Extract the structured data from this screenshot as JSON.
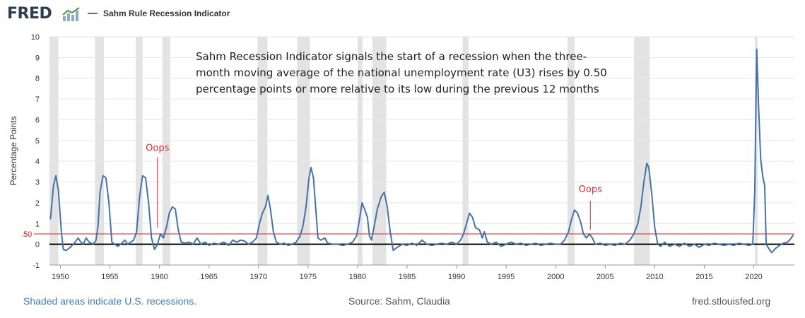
{
  "header": {
    "logo_text": "FRED",
    "logo_icon": "line-chart-icon",
    "series_label": "Sahm Rule Recession Indicator",
    "series_color": "#4572a7"
  },
  "chart_data": {
    "type": "line",
    "ylabel": "Percentage Points",
    "xlim": [
      1948.9,
      2024.1
    ],
    "ylim": [
      -1,
      10
    ],
    "yticks": [
      -1,
      0,
      1,
      2,
      3,
      4,
      5,
      6,
      7,
      8,
      9,
      10
    ],
    "xticks": [
      1950,
      1955,
      1960,
      1965,
      1970,
      1975,
      1980,
      1985,
      1990,
      1995,
      2000,
      2005,
      2010,
      2015,
      2020
    ],
    "grid": true,
    "recessions": [
      [
        1948.9,
        1949.8
      ],
      [
        1953.5,
        1954.4
      ],
      [
        1957.6,
        1958.3
      ],
      [
        1960.3,
        1961.1
      ],
      [
        1969.9,
        1970.9
      ],
      [
        1973.9,
        1975.2
      ],
      [
        1980.0,
        1980.5
      ],
      [
        1981.5,
        1982.9
      ],
      [
        1990.6,
        1991.2
      ],
      [
        2001.2,
        2001.9
      ],
      [
        2007.9,
        2009.5
      ],
      [
        2020.1,
        2020.4
      ]
    ],
    "recession_color": "#e3e3e3",
    "reference_line": {
      "value": 0.5,
      "label": ".50",
      "color": "#cc2222"
    },
    "zero_line_color": "#000000",
    "annotation": {
      "lines": [
        "Sahm Recession Indicator signals the start of a recession when the three-",
        "month moving average of the national unemployment rate (U3) rises by 0.50",
        "percentage points or more relative to its low during the previous 12 months"
      ]
    },
    "callouts": [
      {
        "label": "Oops",
        "x": 1959.8,
        "y_text": 4.5,
        "y_line_top": 4.2,
        "y_line_bottom": 0.8
      },
      {
        "label": "Oops",
        "x": 2003.5,
        "y_text": 2.5,
        "y_line_top": 2.1,
        "y_line_bottom": 0.7
      }
    ],
    "callout_color": "#d9303a",
    "series": [
      {
        "name": "Sahm Rule Recession Indicator",
        "color": "#4572a7",
        "points": [
          [
            1949.0,
            1.2
          ],
          [
            1949.3,
            2.8
          ],
          [
            1949.55,
            3.3
          ],
          [
            1949.8,
            2.6
          ],
          [
            1950.1,
            0.6
          ],
          [
            1950.3,
            -0.25
          ],
          [
            1950.6,
            -0.3
          ],
          [
            1951.0,
            -0.15
          ],
          [
            1951.4,
            0.05
          ],
          [
            1951.8,
            0.3
          ],
          [
            1952.0,
            0.15
          ],
          [
            1952.3,
            0.0
          ],
          [
            1952.6,
            0.3
          ],
          [
            1952.9,
            0.1
          ],
          [
            1953.3,
            0.0
          ],
          [
            1953.6,
            0.2
          ],
          [
            1953.8,
            0.9
          ],
          [
            1954.0,
            2.5
          ],
          [
            1954.3,
            3.3
          ],
          [
            1954.6,
            3.2
          ],
          [
            1954.9,
            2.0
          ],
          [
            1955.2,
            0.1
          ],
          [
            1955.5,
            0.0
          ],
          [
            1955.8,
            -0.1
          ],
          [
            1956.2,
            0.05
          ],
          [
            1956.5,
            0.2
          ],
          [
            1956.8,
            0.0
          ],
          [
            1957.1,
            0.1
          ],
          [
            1957.4,
            0.2
          ],
          [
            1957.7,
            0.6
          ],
          [
            1958.0,
            2.3
          ],
          [
            1958.3,
            3.3
          ],
          [
            1958.6,
            3.2
          ],
          [
            1958.9,
            2.0
          ],
          [
            1959.2,
            0.3
          ],
          [
            1959.5,
            -0.25
          ],
          [
            1959.8,
            0.0
          ],
          [
            1960.1,
            0.5
          ],
          [
            1960.4,
            0.3
          ],
          [
            1960.7,
            0.8
          ],
          [
            1961.0,
            1.5
          ],
          [
            1961.3,
            1.8
          ],
          [
            1961.6,
            1.7
          ],
          [
            1961.9,
            0.7
          ],
          [
            1962.2,
            0.1
          ],
          [
            1962.6,
            0.05
          ],
          [
            1963.0,
            0.1
          ],
          [
            1963.4,
            0.0
          ],
          [
            1963.8,
            0.3
          ],
          [
            1964.2,
            0.0
          ],
          [
            1964.6,
            0.1
          ],
          [
            1965.0,
            -0.05
          ],
          [
            1965.5,
            0.05
          ],
          [
            1966.0,
            0.0
          ],
          [
            1966.5,
            0.1
          ],
          [
            1967.0,
            -0.05
          ],
          [
            1967.4,
            0.2
          ],
          [
            1967.8,
            0.1
          ],
          [
            1968.2,
            0.2
          ],
          [
            1968.6,
            0.15
          ],
          [
            1969.0,
            0.0
          ],
          [
            1969.4,
            0.1
          ],
          [
            1969.8,
            0.3
          ],
          [
            1970.1,
            1.0
          ],
          [
            1970.4,
            1.5
          ],
          [
            1970.7,
            1.8
          ],
          [
            1970.95,
            2.35
          ],
          [
            1971.2,
            1.7
          ],
          [
            1971.5,
            0.6
          ],
          [
            1971.8,
            0.1
          ],
          [
            1972.2,
            0.0
          ],
          [
            1972.6,
            0.05
          ],
          [
            1973.0,
            -0.05
          ],
          [
            1973.4,
            0.0
          ],
          [
            1973.8,
            0.1
          ],
          [
            1974.2,
            0.4
          ],
          [
            1974.5,
            0.9
          ],
          [
            1974.8,
            1.8
          ],
          [
            1975.1,
            3.2
          ],
          [
            1975.3,
            3.7
          ],
          [
            1975.55,
            3.2
          ],
          [
            1975.8,
            1.6
          ],
          [
            1976.0,
            0.3
          ],
          [
            1976.3,
            0.2
          ],
          [
            1976.7,
            0.3
          ],
          [
            1977.0,
            0.05
          ],
          [
            1977.5,
            0.0
          ],
          [
            1978.0,
            0.0
          ],
          [
            1978.5,
            -0.05
          ],
          [
            1979.0,
            0.0
          ],
          [
            1979.5,
            0.1
          ],
          [
            1979.9,
            0.4
          ],
          [
            1980.2,
            1.2
          ],
          [
            1980.45,
            2.0
          ],
          [
            1980.7,
            1.7
          ],
          [
            1981.0,
            1.3
          ],
          [
            1981.2,
            0.4
          ],
          [
            1981.4,
            0.2
          ],
          [
            1981.7,
            0.9
          ],
          [
            1982.0,
            1.7
          ],
          [
            1982.4,
            2.3
          ],
          [
            1982.7,
            2.5
          ],
          [
            1983.0,
            1.8
          ],
          [
            1983.3,
            0.6
          ],
          [
            1983.6,
            -0.3
          ],
          [
            1984.0,
            -0.15
          ],
          [
            1984.5,
            0.0
          ],
          [
            1985.0,
            -0.05
          ],
          [
            1985.5,
            0.05
          ],
          [
            1986.0,
            -0.05
          ],
          [
            1986.5,
            0.2
          ],
          [
            1987.0,
            0.0
          ],
          [
            1987.5,
            -0.05
          ],
          [
            1988.0,
            0.0
          ],
          [
            1988.5,
            0.05
          ],
          [
            1989.0,
            0.0
          ],
          [
            1989.5,
            0.1
          ],
          [
            1990.0,
            0.0
          ],
          [
            1990.4,
            0.2
          ],
          [
            1990.7,
            0.5
          ],
          [
            1991.0,
            1.0
          ],
          [
            1991.3,
            1.5
          ],
          [
            1991.6,
            1.3
          ],
          [
            1991.9,
            0.8
          ],
          [
            1992.3,
            0.7
          ],
          [
            1992.6,
            0.3
          ],
          [
            1992.8,
            0.6
          ],
          [
            1993.1,
            0.1
          ],
          [
            1993.5,
            0.0
          ],
          [
            1994.0,
            0.1
          ],
          [
            1994.5,
            -0.1
          ],
          [
            1995.0,
            0.0
          ],
          [
            1995.5,
            0.1
          ],
          [
            1996.0,
            0.0
          ],
          [
            1996.5,
            0.05
          ],
          [
            1997.0,
            -0.05
          ],
          [
            1997.5,
            0.0
          ],
          [
            1998.0,
            0.05
          ],
          [
            1998.5,
            -0.05
          ],
          [
            1999.0,
            0.0
          ],
          [
            1999.5,
            0.05
          ],
          [
            2000.0,
            0.0
          ],
          [
            2000.5,
            0.0
          ],
          [
            2000.9,
            0.2
          ],
          [
            2001.3,
            0.6
          ],
          [
            2001.6,
            1.2
          ],
          [
            2001.9,
            1.65
          ],
          [
            2002.2,
            1.5
          ],
          [
            2002.5,
            1.1
          ],
          [
            2002.8,
            0.5
          ],
          [
            2003.1,
            0.3
          ],
          [
            2003.4,
            0.5
          ],
          [
            2003.7,
            0.3
          ],
          [
            2004.0,
            0.0
          ],
          [
            2004.5,
            0.05
          ],
          [
            2005.0,
            -0.05
          ],
          [
            2005.5,
            0.0
          ],
          [
            2006.0,
            -0.05
          ],
          [
            2006.5,
            0.05
          ],
          [
            2007.0,
            0.0
          ],
          [
            2007.5,
            0.2
          ],
          [
            2007.9,
            0.5
          ],
          [
            2008.3,
            1.0
          ],
          [
            2008.6,
            1.8
          ],
          [
            2008.9,
            3.0
          ],
          [
            2009.2,
            3.9
          ],
          [
            2009.4,
            3.7
          ],
          [
            2009.7,
            2.4
          ],
          [
            2010.0,
            0.8
          ],
          [
            2010.3,
            0.0
          ],
          [
            2010.6,
            -0.1
          ],
          [
            2011.0,
            0.1
          ],
          [
            2011.5,
            -0.1
          ],
          [
            2012.0,
            0.0
          ],
          [
            2012.5,
            -0.1
          ],
          [
            2013.0,
            0.05
          ],
          [
            2013.5,
            -0.1
          ],
          [
            2014.0,
            0.0
          ],
          [
            2014.5,
            -0.15
          ],
          [
            2015.0,
            0.0
          ],
          [
            2015.5,
            -0.05
          ],
          [
            2016.0,
            0.05
          ],
          [
            2016.5,
            0.0
          ],
          [
            2017.0,
            -0.05
          ],
          [
            2017.5,
            0.0
          ],
          [
            2018.0,
            -0.05
          ],
          [
            2018.5,
            0.05
          ],
          [
            2019.0,
            0.0
          ],
          [
            2019.5,
            -0.05
          ],
          [
            2019.9,
            0.0
          ],
          [
            2020.1,
            2.5
          ],
          [
            2020.3,
            9.4
          ],
          [
            2020.5,
            6.5
          ],
          [
            2020.7,
            4.1
          ],
          [
            2020.9,
            3.3
          ],
          [
            2021.1,
            2.8
          ],
          [
            2021.25,
            0.0
          ],
          [
            2021.5,
            -0.2
          ],
          [
            2021.8,
            -0.4
          ],
          [
            2022.2,
            -0.2
          ],
          [
            2022.6,
            -0.05
          ],
          [
            2023.0,
            0.05
          ],
          [
            2023.4,
            0.1
          ],
          [
            2023.7,
            0.25
          ],
          [
            2024.0,
            0.45
          ]
        ]
      }
    ]
  },
  "footer": {
    "note": "Shaded areas indicate U.S. recessions.",
    "source": "Source: Sahm, Claudia",
    "url": "fred.stlouisfed.org"
  }
}
